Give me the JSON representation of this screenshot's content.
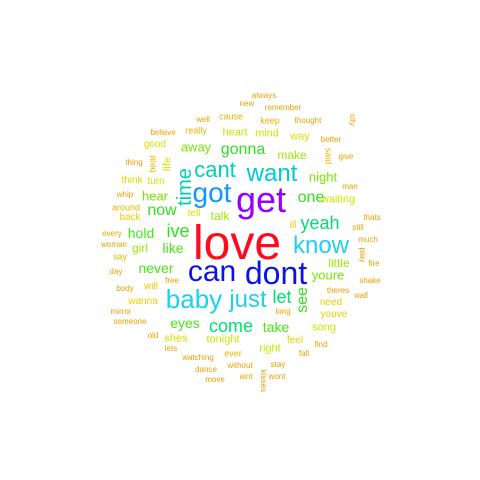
{
  "words": [
    {
      "text": "love",
      "color": "#ff0a1e"
    },
    {
      "text": "get",
      "color": "#9400ff"
    },
    {
      "text": "dont",
      "color": "#0a14e6"
    },
    {
      "text": "can",
      "color": "#0a14e6"
    },
    {
      "text": "got",
      "color": "#1496ff"
    },
    {
      "text": "want",
      "color": "#00c8d8"
    },
    {
      "text": "baby",
      "color": "#1ed0f0"
    },
    {
      "text": "just",
      "color": "#1ed0f0"
    },
    {
      "text": "know",
      "color": "#1ed0f0"
    },
    {
      "text": "cant",
      "color": "#00d0b4"
    },
    {
      "text": "time",
      "color": "#00d0b4"
    },
    {
      "text": "come",
      "color": "#00e070"
    },
    {
      "text": "let",
      "color": "#00e070"
    },
    {
      "text": "yeah",
      "color": "#00e070"
    },
    {
      "text": "gonna",
      "color": "#32e01e"
    },
    {
      "text": "ive",
      "color": "#32e01e"
    },
    {
      "text": "see",
      "color": "#32e01e"
    },
    {
      "text": "now",
      "color": "#32e01e"
    },
    {
      "text": "one",
      "color": "#32e01e"
    },
    {
      "text": "never",
      "color": "#46e614"
    },
    {
      "text": "like",
      "color": "#46e614"
    },
    {
      "text": "hold",
      "color": "#46e614"
    },
    {
      "text": "take",
      "color": "#46e614"
    },
    {
      "text": "eyes",
      "color": "#46e614"
    },
    {
      "text": "away",
      "color": "#7ae600"
    },
    {
      "text": "hear",
      "color": "#7ae600"
    },
    {
      "text": "night",
      "color": "#7ae600"
    },
    {
      "text": "youre",
      "color": "#7ae600"
    },
    {
      "text": "make",
      "color": "#9fe600"
    },
    {
      "text": "talk",
      "color": "#9fe600"
    },
    {
      "text": "girl",
      "color": "#9fe600"
    },
    {
      "text": "little",
      "color": "#9fe600"
    },
    {
      "text": "waiting",
      "color": "#c8e800"
    },
    {
      "text": "heart",
      "color": "#c8e800"
    },
    {
      "text": "mind",
      "color": "#c8e800"
    },
    {
      "text": "tonight",
      "color": "#c8e800"
    },
    {
      "text": "right",
      "color": "#c8e800"
    },
    {
      "text": "song",
      "color": "#c8e800"
    },
    {
      "text": "shes",
      "color": "#d8e000"
    },
    {
      "text": "way",
      "color": "#d8e000"
    },
    {
      "text": "life",
      "color": "#d8e000"
    },
    {
      "text": "think",
      "color": "#d8e000"
    },
    {
      "text": "turn",
      "color": "#d8e000"
    },
    {
      "text": "good",
      "color": "#d8e000"
    },
    {
      "text": "tell",
      "color": "#d8e000"
    },
    {
      "text": "wanna",
      "color": "#e8d000"
    },
    {
      "text": "will",
      "color": "#e8d000"
    },
    {
      "text": "need",
      "color": "#e8d000"
    },
    {
      "text": "youve",
      "color": "#e8d000"
    },
    {
      "text": "feel",
      "color": "#e8d000"
    },
    {
      "text": "ill",
      "color": "#e8d000"
    },
    {
      "text": "back",
      "color": "#e8d000"
    },
    {
      "text": "around",
      "color": "#e8b400"
    },
    {
      "text": "really",
      "color": "#e8b400"
    },
    {
      "text": "cause",
      "color": "#e8b400"
    },
    {
      "text": "keep",
      "color": "#e8b400"
    },
    {
      "text": "said",
      "color": "#e8b400"
    },
    {
      "text": "beat",
      "color": "#e8b400"
    },
    {
      "text": "say",
      "color": "#e8b400"
    },
    {
      "text": "ever",
      "color": "#e8b400"
    },
    {
      "text": "every",
      "color": "#e8a000"
    },
    {
      "text": "woman",
      "color": "#e8a000"
    },
    {
      "text": "day",
      "color": "#e8a000"
    },
    {
      "text": "body",
      "color": "#e8a000"
    },
    {
      "text": "mirror",
      "color": "#e8a000"
    },
    {
      "text": "someone",
      "color": "#e8a000"
    },
    {
      "text": "old",
      "color": "#e8a000"
    },
    {
      "text": "lets",
      "color": "#e8a000"
    },
    {
      "text": "watching",
      "color": "#e8a000"
    },
    {
      "text": "dance",
      "color": "#e8a000"
    },
    {
      "text": "move",
      "color": "#e8a000"
    },
    {
      "text": "without",
      "color": "#e8a000"
    },
    {
      "text": "aint",
      "color": "#e8a000"
    },
    {
      "text": "stay",
      "color": "#e8a000"
    },
    {
      "text": "wont",
      "color": "#e8a000"
    },
    {
      "text": "fall",
      "color": "#e8a000"
    },
    {
      "text": "find",
      "color": "#e8a000"
    },
    {
      "text": "long",
      "color": "#e8a000"
    },
    {
      "text": "free",
      "color": "#e8a000"
    },
    {
      "text": "theres",
      "color": "#e8a000"
    },
    {
      "text": "still",
      "color": "#e8a000"
    },
    {
      "text": "fire",
      "color": "#e8a000"
    },
    {
      "text": "wall",
      "color": "#e8a000"
    },
    {
      "text": "shake",
      "color": "#e8a000"
    },
    {
      "text": "much",
      "color": "#e8a000"
    },
    {
      "text": "thats",
      "color": "#e8a000"
    },
    {
      "text": "play",
      "color": "#e8a000"
    },
    {
      "text": "city",
      "color": "#e8a000"
    },
    {
      "text": "man",
      "color": "#e8a000"
    },
    {
      "text": "give",
      "color": "#e8a000"
    },
    {
      "text": "better",
      "color": "#e8a000"
    },
    {
      "text": "thought",
      "color": "#e8a000"
    },
    {
      "text": "remember",
      "color": "#e8a000"
    },
    {
      "text": "new",
      "color": "#e8a000"
    },
    {
      "text": "always",
      "color": "#e8a000"
    },
    {
      "text": "well",
      "color": "#e8a000"
    },
    {
      "text": "believe",
      "color": "#e8a000"
    },
    {
      "text": "thing",
      "color": "#e8a000"
    },
    {
      "text": "whip",
      "color": "#e8a000"
    },
    {
      "text": "kisses",
      "color": "#e8a000"
    }
  ]
}
